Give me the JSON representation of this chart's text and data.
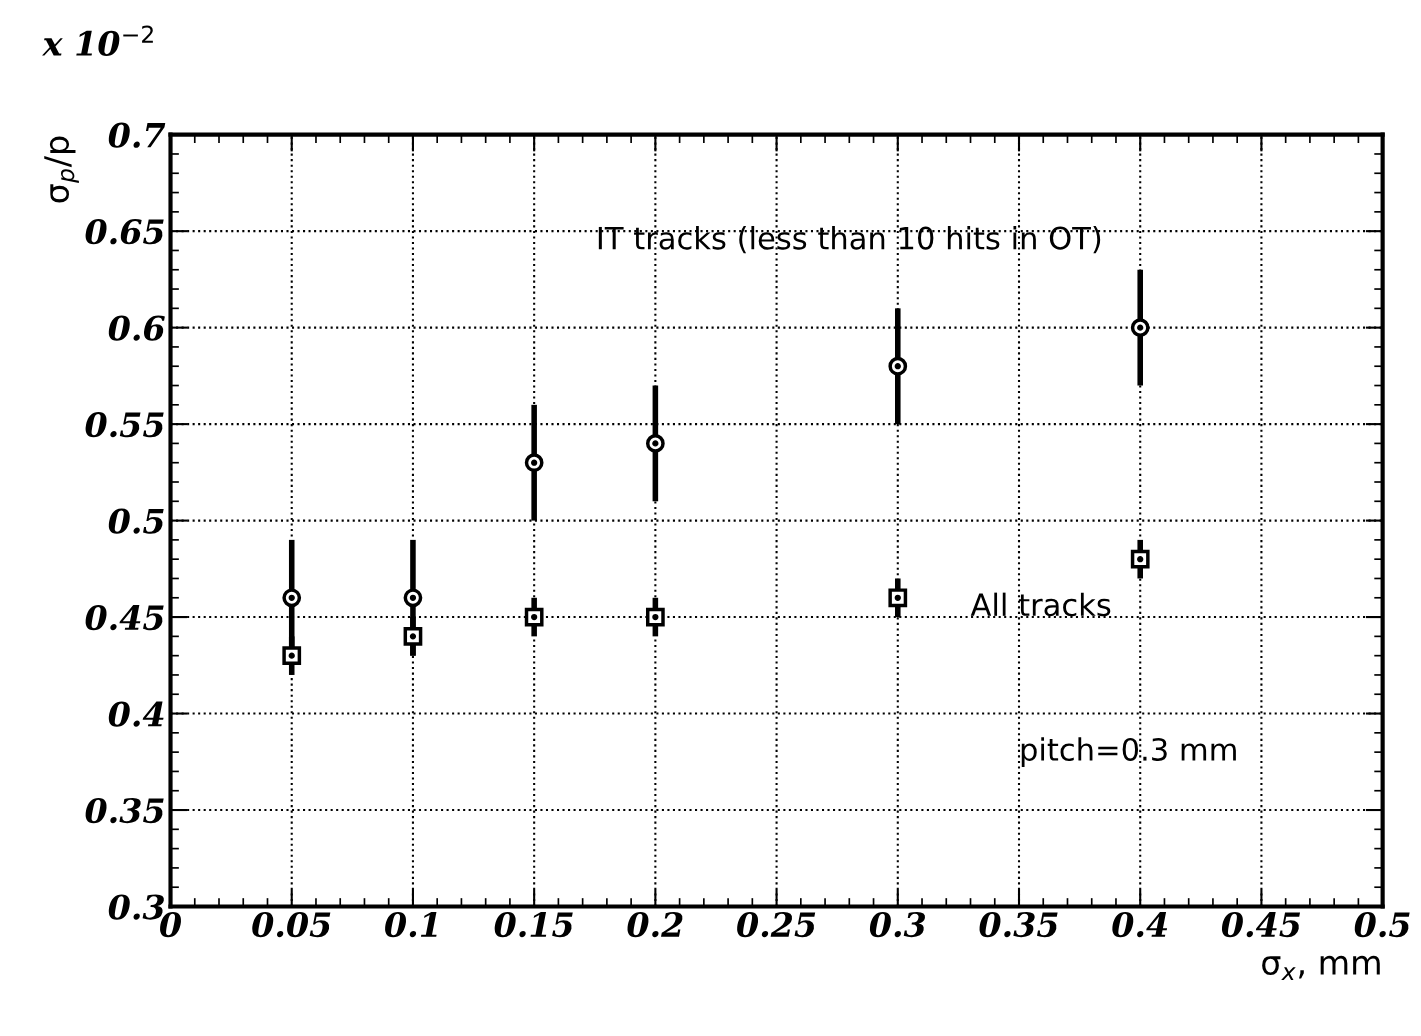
{
  "chart_data": {
    "type": "scatter",
    "xlabel": "σ$_{x}$, mm",
    "ylabel": "σ$_{p}$/p",
    "x": [
      0.05,
      0.1,
      0.15,
      0.2,
      0.3,
      0.4
    ],
    "series": [
      {
        "name": "IT tracks (less than 10 hits in OT)",
        "color": "#000000",
        "marker": "circle",
        "values": [
          0.46,
          0.46,
          0.53,
          0.54,
          0.58,
          0.6
        ],
        "errors": [
          0.03,
          0.03,
          0.03,
          0.03,
          0.03,
          0.03
        ]
      },
      {
        "name": "All tracks",
        "color": "#000000",
        "marker": "square",
        "values": [
          0.43,
          0.44,
          0.45,
          0.45,
          0.46,
          0.48
        ],
        "errors": [
          0.01,
          0.01,
          0.01,
          0.01,
          0.01,
          0.01
        ]
      }
    ],
    "annotations": [
      "x 10$^{−2}$",
      "pitch=0.3 mm"
    ],
    "xlim": [
      0,
      0.5
    ],
    "xticks": [
      0,
      0.05,
      0.1,
      0.15,
      0.2,
      0.25,
      0.3,
      0.35,
      0.4,
      0.45,
      0.5
    ],
    "ylim": [
      0.3,
      0.7
    ],
    "yticks": [
      0.3,
      0.35,
      0.4,
      0.45,
      0.5,
      0.55,
      0.6,
      0.65,
      0.7
    ],
    "grid": true,
    "legend": false
  }
}
